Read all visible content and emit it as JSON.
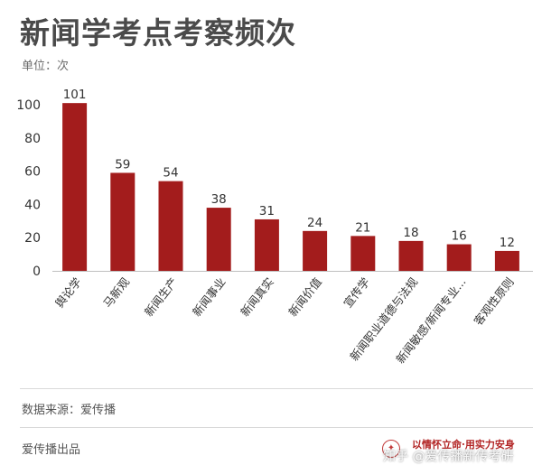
{
  "header": {
    "title": "新闻学考点考察频次",
    "unit": "单位：次"
  },
  "footer": {
    "source": "数据来源：爱传播",
    "producer": "爱传播出品",
    "slogan": "以情怀立命·用实力安身",
    "watermark": "知乎 @爱传播新传考研"
  },
  "colors": {
    "bar": "#a31c1c",
    "axis": "#bfbfbf",
    "text": "#333333"
  },
  "chart_data": {
    "type": "bar",
    "title": "新闻学考点考察频次",
    "ylabel": "单位：次",
    "ylim": [
      0,
      110
    ],
    "yticks": [
      0,
      20,
      40,
      60,
      80,
      100
    ],
    "grid": false,
    "categories": [
      "舆论学",
      "马新观",
      "新闻生产",
      "新闻事业",
      "新闻真实",
      "新闻价值",
      "宣传学",
      "新闻职业道德与法规",
      "新闻敏感/新闻专业...",
      "客观性原则"
    ],
    "values": [
      101,
      59,
      54,
      38,
      31,
      24,
      21,
      18,
      16,
      12
    ]
  }
}
